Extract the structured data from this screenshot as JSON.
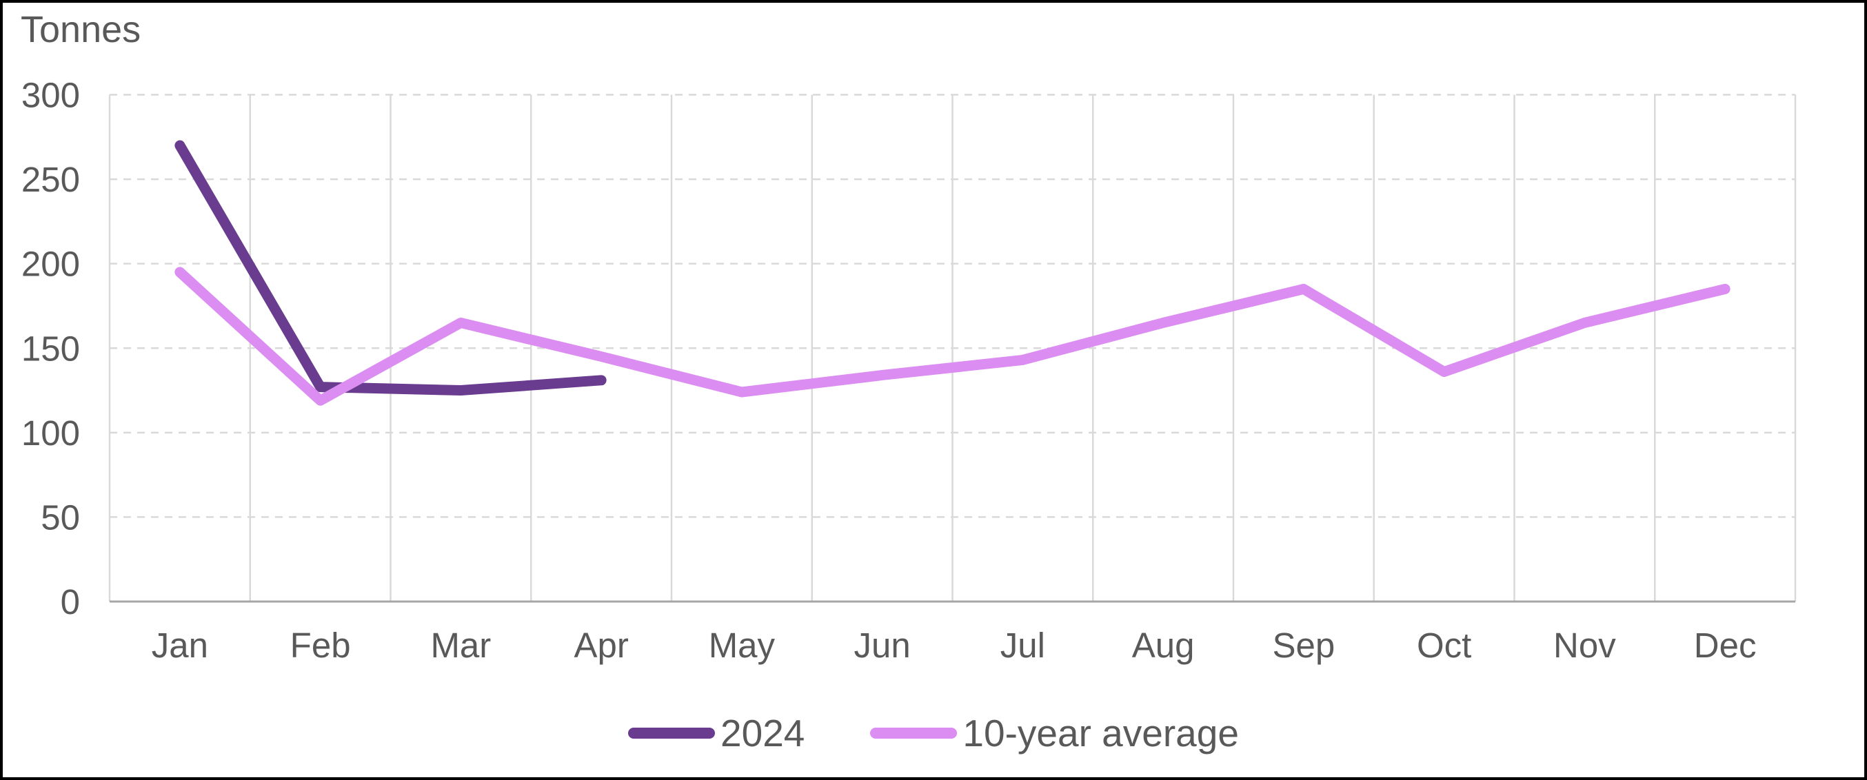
{
  "chart_data": {
    "type": "line",
    "title": "Tonnes",
    "ylabel": "Tonnes",
    "xlabel": "",
    "ylim": [
      0,
      300
    ],
    "y_ticks": [
      0,
      50,
      100,
      150,
      200,
      250,
      300
    ],
    "categories": [
      "Jan",
      "Feb",
      "Mar",
      "Apr",
      "May",
      "Jun",
      "Jul",
      "Aug",
      "Sep",
      "Oct",
      "Nov",
      "Dec"
    ],
    "series": [
      {
        "name": "2024",
        "color": "#693C8F",
        "values": [
          270,
          127,
          125,
          131
        ]
      },
      {
        "name": "10-year average",
        "color": "#DB8DF2",
        "values": [
          195,
          119,
          165,
          145,
          124,
          134,
          143,
          165,
          185,
          136,
          165,
          185
        ]
      }
    ],
    "legend_position": "bottom",
    "grid": {
      "horizontal": "dashed",
      "vertical": "solid"
    }
  },
  "colors": {
    "grid": "#D9D9D9",
    "axis": "#A6A6A6",
    "text": "#595959",
    "background": "#FFFFFF",
    "frame": "#000000"
  }
}
